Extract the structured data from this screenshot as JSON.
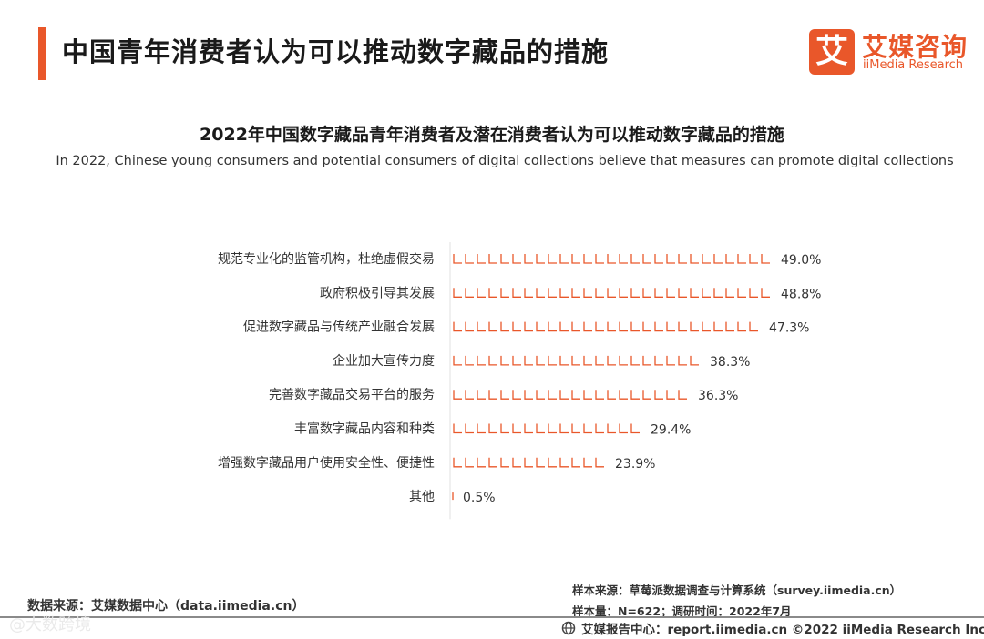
{
  "header": {
    "title": "中国青年消费者认为可以推动数字藏品的措施",
    "accent_color": "#e9572a"
  },
  "logo": {
    "mark": "艾",
    "name_cn": "艾媒咨询",
    "name_en": "iiMedia Research"
  },
  "chart_data": {
    "type": "bar",
    "orientation": "horizontal",
    "title": "2022年中国数字藏品青年消费者及潜在消费者认为可以推动数字藏品的措施",
    "subtitle": "In 2022, Chinese  young consumers and potential consumers of digital collections believe that measures can promote digital collections",
    "categories": [
      "规范专业化的监管机构，杜绝虚假交易",
      "政府积极引导其发展",
      "促进数字藏品与传统产业融合发展",
      "企业加大宣传力度",
      "完善数字藏品交易平台的服务",
      "丰富数字藏品内容和种类",
      "增强数字藏品用户使用安全性、便捷性",
      "其他"
    ],
    "values": [
      49.0,
      48.8,
      47.3,
      38.3,
      36.3,
      29.4,
      23.9,
      0.5
    ],
    "value_labels": [
      "49.0%",
      "48.8%",
      "47.3%",
      "38.3%",
      "36.3%",
      "29.4%",
      "23.9%",
      "0.5%"
    ],
    "unit": "%",
    "xlim": [
      0,
      50
    ],
    "bar_color": "#e9572a",
    "grid": false
  },
  "footer": {
    "source_left": "数据来源：艾媒数据中心（data.iimedia.cn）",
    "sample_source": "样本来源：草莓派数据调查与计算系统（survey.iimedia.cn）",
    "sample_size": "样本量：N=622；调研时间：2022年7月",
    "report_center": "艾媒报告中心：report.iimedia.cn  ©2022  iiMedia Research  Inc",
    "watermark": "@大数跨境"
  }
}
